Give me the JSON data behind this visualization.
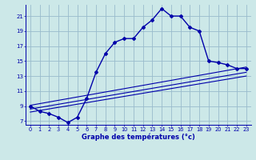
{
  "xlabel": "Graphe des températures (°c)",
  "bg_color": "#cce8e8",
  "line_color": "#0000aa",
  "grid_color": "#99bbcc",
  "xlim": [
    -0.5,
    23.5
  ],
  "ylim": [
    6.5,
    22.5
  ],
  "yticks": [
    7,
    9,
    11,
    13,
    15,
    17,
    19,
    21
  ],
  "xticks": [
    0,
    1,
    2,
    3,
    4,
    5,
    6,
    7,
    8,
    9,
    10,
    11,
    12,
    13,
    14,
    15,
    16,
    17,
    18,
    19,
    20,
    21,
    22,
    23
  ],
  "main_line_x": [
    0,
    1,
    2,
    3,
    4,
    5,
    6,
    7,
    8,
    9,
    10,
    11,
    12,
    13,
    14,
    15,
    16,
    17,
    18,
    19,
    20,
    21,
    22,
    23
  ],
  "main_line_y": [
    9.0,
    8.3,
    8.0,
    7.5,
    6.8,
    7.5,
    10.0,
    13.5,
    16.0,
    17.5,
    18.0,
    18.0,
    19.5,
    20.5,
    22.0,
    21.0,
    21.0,
    19.5,
    19.0,
    15.0,
    14.8,
    14.5,
    14.0,
    14.0
  ],
  "reg_line1_x": [
    0,
    23
  ],
  "reg_line1_y": [
    8.2,
    13.0
  ],
  "reg_line2_x": [
    0,
    23
  ],
  "reg_line2_y": [
    8.6,
    13.5
  ],
  "reg_line3_x": [
    0,
    23
  ],
  "reg_line3_y": [
    9.1,
    14.2
  ]
}
